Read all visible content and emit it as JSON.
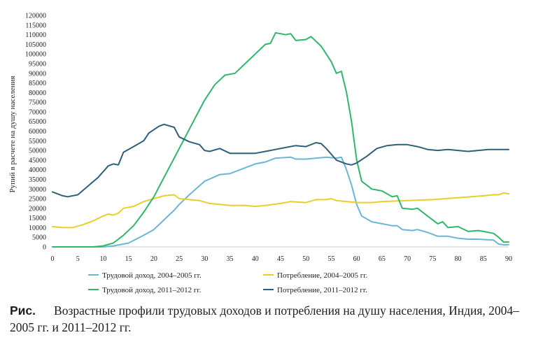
{
  "caption": {
    "label": "Рис.",
    "text": "Возрастные профили трудовых доходов и потребления на душу населения, Индия, 2004–2005 гг. и 2011–2012 гг."
  },
  "chart_data": {
    "type": "line",
    "title": "",
    "xlabel": "",
    "ylabel": "Рупий в расчете на душу населения",
    "xlim": [
      0,
      90
    ],
    "ylim": [
      0,
      120000
    ],
    "xticks": [
      0,
      5,
      10,
      15,
      20,
      25,
      30,
      35,
      40,
      45,
      50,
      55,
      60,
      65,
      70,
      75,
      80,
      85,
      90
    ],
    "yticks": [
      0,
      5000,
      10000,
      15000,
      20000,
      25000,
      30000,
      35000,
      40000,
      45000,
      50000,
      55000,
      60000,
      65000,
      70000,
      75000,
      80000,
      85000,
      90000,
      95000,
      100000,
      105000,
      110000,
      115000,
      120000
    ],
    "grid": false,
    "legend_position": "bottom",
    "series": [
      {
        "name": "Трудовой доход, 2004–2005 гг.",
        "color": "#6bb6d6",
        "points": [
          [
            0,
            0
          ],
          [
            5,
            0
          ],
          [
            10,
            0
          ],
          [
            12,
            500
          ],
          [
            15,
            2000
          ],
          [
            18,
            6000
          ],
          [
            20,
            9000
          ],
          [
            22,
            14000
          ],
          [
            24,
            19000
          ],
          [
            25,
            22000
          ],
          [
            27,
            27000
          ],
          [
            30,
            34000
          ],
          [
            33,
            37500
          ],
          [
            35,
            38000
          ],
          [
            38,
            41000
          ],
          [
            40,
            43000
          ],
          [
            42,
            44000
          ],
          [
            44,
            46000
          ],
          [
            47,
            46500
          ],
          [
            48,
            45500
          ],
          [
            50,
            45500
          ],
          [
            52,
            46000
          ],
          [
            54,
            46500
          ],
          [
            56,
            46000
          ],
          [
            57,
            46500
          ],
          [
            58,
            40000
          ],
          [
            59,
            32000
          ],
          [
            60,
            22000
          ],
          [
            61,
            16000
          ],
          [
            63,
            13000
          ],
          [
            65,
            12000
          ],
          [
            67,
            11000
          ],
          [
            68,
            11000
          ],
          [
            69,
            9000
          ],
          [
            71,
            8500
          ],
          [
            72,
            9000
          ],
          [
            74,
            7500
          ],
          [
            76,
            5500
          ],
          [
            78,
            5500
          ],
          [
            80,
            4500
          ],
          [
            82,
            4000
          ],
          [
            84,
            4000
          ],
          [
            85,
            3800
          ],
          [
            87,
            3500
          ],
          [
            88,
            1500
          ],
          [
            89,
            1000
          ],
          [
            90,
            1200
          ]
        ]
      },
      {
        "name": "Потребление, 2004–2005 гг.",
        "color": "#e6d12a",
        "points": [
          [
            0,
            10500
          ],
          [
            2,
            10000
          ],
          [
            4,
            10000
          ],
          [
            6,
            11500
          ],
          [
            8,
            13500
          ],
          [
            10,
            16000
          ],
          [
            11,
            17000
          ],
          [
            12,
            16500
          ],
          [
            13,
            17500
          ],
          [
            14,
            20000
          ],
          [
            16,
            21000
          ],
          [
            18,
            23500
          ],
          [
            20,
            25000
          ],
          [
            22,
            26500
          ],
          [
            24,
            27000
          ],
          [
            25,
            25000
          ],
          [
            27,
            24500
          ],
          [
            29,
            24000
          ],
          [
            31,
            22500
          ],
          [
            33,
            22000
          ],
          [
            35,
            21500
          ],
          [
            38,
            21500
          ],
          [
            40,
            21000
          ],
          [
            42,
            21500
          ],
          [
            45,
            22500
          ],
          [
            47,
            23500
          ],
          [
            50,
            23000
          ],
          [
            52,
            24500
          ],
          [
            54,
            24500
          ],
          [
            55,
            25000
          ],
          [
            56,
            24000
          ],
          [
            58,
            23500
          ],
          [
            60,
            23000
          ],
          [
            63,
            23000
          ],
          [
            65,
            23500
          ],
          [
            70,
            24000
          ],
          [
            75,
            24500
          ],
          [
            80,
            25500
          ],
          [
            85,
            26500
          ],
          [
            87,
            27000
          ],
          [
            88,
            27000
          ],
          [
            89,
            28000
          ],
          [
            90,
            27500
          ]
        ]
      },
      {
        "name": "Трудовой доход, 2011–2012 гг.",
        "color": "#2fb86b",
        "points": [
          [
            0,
            0
          ],
          [
            5,
            0
          ],
          [
            8,
            0
          ],
          [
            10,
            500
          ],
          [
            12,
            2000
          ],
          [
            14,
            6000
          ],
          [
            16,
            11000
          ],
          [
            18,
            18000
          ],
          [
            20,
            26000
          ],
          [
            22,
            36000
          ],
          [
            24,
            46000
          ],
          [
            26,
            56000
          ],
          [
            28,
            66000
          ],
          [
            30,
            76000
          ],
          [
            32,
            84000
          ],
          [
            34,
            89000
          ],
          [
            36,
            90000
          ],
          [
            38,
            95000
          ],
          [
            40,
            100000
          ],
          [
            42,
            105000
          ],
          [
            43,
            105500
          ],
          [
            44,
            111000
          ],
          [
            46,
            110000
          ],
          [
            47,
            110500
          ],
          [
            48,
            107000
          ],
          [
            50,
            107500
          ],
          [
            51,
            109000
          ],
          [
            53,
            104000
          ],
          [
            55,
            96000
          ],
          [
            56,
            90000
          ],
          [
            57,
            91000
          ],
          [
            58,
            80000
          ],
          [
            59,
            65000
          ],
          [
            60,
            45000
          ],
          [
            61,
            34000
          ],
          [
            63,
            30000
          ],
          [
            65,
            29000
          ],
          [
            67,
            26000
          ],
          [
            68,
            26500
          ],
          [
            69,
            20000
          ],
          [
            71,
            19500
          ],
          [
            72,
            20000
          ],
          [
            74,
            16000
          ],
          [
            76,
            12000
          ],
          [
            77,
            13000
          ],
          [
            78,
            10000
          ],
          [
            80,
            10500
          ],
          [
            82,
            8000
          ],
          [
            84,
            8500
          ],
          [
            85,
            8000
          ],
          [
            87,
            7000
          ],
          [
            88,
            5000
          ],
          [
            89,
            2500
          ],
          [
            90,
            2500
          ]
        ]
      },
      {
        "name": "Потребление, 2011–2012 гг.",
        "color": "#2f5f7a",
        "points": [
          [
            0,
            28500
          ],
          [
            2,
            26500
          ],
          [
            3,
            26000
          ],
          [
            5,
            27000
          ],
          [
            7,
            31500
          ],
          [
            9,
            36000
          ],
          [
            11,
            42000
          ],
          [
            12,
            43000
          ],
          [
            13,
            42500
          ],
          [
            14,
            49000
          ],
          [
            16,
            52000
          ],
          [
            18,
            55000
          ],
          [
            19,
            59000
          ],
          [
            21,
            62500
          ],
          [
            22,
            63500
          ],
          [
            24,
            62000
          ],
          [
            25,
            57000
          ],
          [
            27,
            54500
          ],
          [
            29,
            53000
          ],
          [
            30,
            50000
          ],
          [
            31,
            49500
          ],
          [
            33,
            51000
          ],
          [
            35,
            48500
          ],
          [
            40,
            48500
          ],
          [
            42,
            49500
          ],
          [
            44,
            50500
          ],
          [
            46,
            51500
          ],
          [
            48,
            52500
          ],
          [
            50,
            52000
          ],
          [
            52,
            54000
          ],
          [
            53,
            53500
          ],
          [
            54,
            51000
          ],
          [
            56,
            45000
          ],
          [
            58,
            43000
          ],
          [
            59,
            42500
          ],
          [
            60,
            43500
          ],
          [
            62,
            47000
          ],
          [
            64,
            51000
          ],
          [
            66,
            52500
          ],
          [
            68,
            53000
          ],
          [
            70,
            53000
          ],
          [
            72,
            52000
          ],
          [
            74,
            50500
          ],
          [
            76,
            50000
          ],
          [
            78,
            50500
          ],
          [
            80,
            50000
          ],
          [
            82,
            49500
          ],
          [
            84,
            50000
          ],
          [
            86,
            50500
          ],
          [
            88,
            50500
          ],
          [
            90,
            50500
          ]
        ]
      }
    ]
  }
}
